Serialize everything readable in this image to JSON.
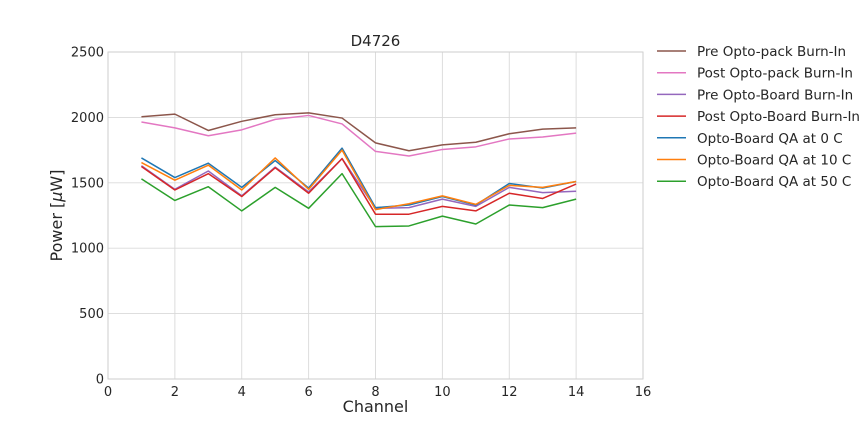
{
  "chart_data": {
    "type": "line",
    "title": "D4726",
    "xlabel": "Channel",
    "ylabel_prefix": "Power [",
    "ylabel_mu": "μ",
    "ylabel_suffix": "W]",
    "xlim": [
      0,
      16
    ],
    "ylim": [
      0,
      2500
    ],
    "xticks": [
      0,
      2,
      4,
      6,
      8,
      10,
      12,
      14,
      16
    ],
    "yticks": [
      0,
      500,
      1000,
      1500,
      2000,
      2500
    ],
    "grid": true,
    "legend_position": "outside-right",
    "x": [
      1,
      2,
      3,
      4,
      5,
      6,
      7,
      8,
      9,
      10,
      11,
      12,
      13,
      14
    ],
    "series": [
      {
        "name": "Pre Opto-pack Burn-In",
        "color": "#8c564b",
        "values": [
          2005,
          2025,
          1900,
          1970,
          2020,
          2035,
          1995,
          1805,
          1745,
          1790,
          1810,
          1875,
          1910,
          1920
        ]
      },
      {
        "name": "Post Opto-pack Burn-In",
        "color": "#e377c2",
        "values": [
          1965,
          1920,
          1860,
          1905,
          1985,
          2015,
          1950,
          1740,
          1705,
          1755,
          1775,
          1835,
          1850,
          1880
        ]
      },
      {
        "name": "Pre Opto-Board Burn-In",
        "color": "#9467bd",
        "values": [
          1630,
          1450,
          1590,
          1400,
          1620,
          1430,
          1685,
          1305,
          1310,
          1375,
          1320,
          1465,
          1425,
          1435
        ]
      },
      {
        "name": "Post Opto-Board Burn-In",
        "color": "#d62728",
        "values": [
          1625,
          1445,
          1570,
          1395,
          1615,
          1420,
          1685,
          1260,
          1260,
          1320,
          1285,
          1420,
          1380,
          1490
        ]
      },
      {
        "name": "Opto-Board QA at 0 C",
        "color": "#1f77b4",
        "values": [
          1690,
          1540,
          1650,
          1465,
          1670,
          1460,
          1765,
          1310,
          1330,
          1395,
          1330,
          1495,
          1460,
          1510
        ]
      },
      {
        "name": "Opto-Board QA at 10 C",
        "color": "#ff7f0e",
        "values": [
          1655,
          1520,
          1635,
          1445,
          1690,
          1450,
          1750,
          1295,
          1340,
          1400,
          1335,
          1480,
          1465,
          1510
        ]
      },
      {
        "name": "Opto-Board QA at 50 C",
        "color": "#2ca02c",
        "values": [
          1530,
          1365,
          1470,
          1285,
          1465,
          1305,
          1570,
          1165,
          1170,
          1245,
          1185,
          1330,
          1310,
          1375
        ]
      }
    ]
  }
}
